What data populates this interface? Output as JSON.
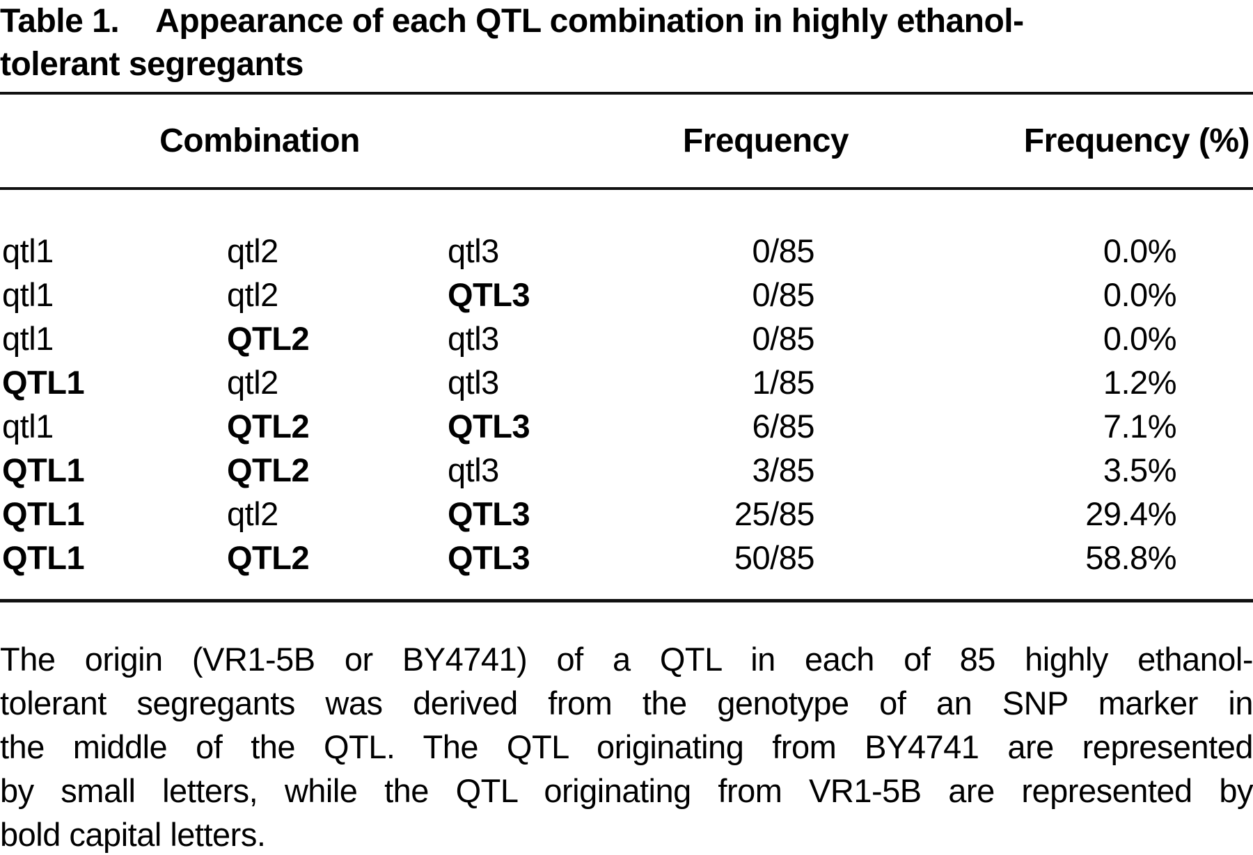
{
  "title": {
    "label": "Table 1.",
    "line1": "Appearance of each QTL combination in highly ethanol-",
    "line2": "tolerant segregants"
  },
  "table": {
    "headers": [
      {
        "text": "Combination"
      },
      {
        "text": "Frequency"
      },
      {
        "text": "Frequency (%)"
      }
    ],
    "rows": [
      {
        "combination": [
          {
            "text": "qtl1",
            "bold": false
          },
          {
            "text": "qtl2",
            "bold": false
          },
          {
            "text": "qtl3",
            "bold": false
          }
        ],
        "frequency": "0/85",
        "percent": "0.0%"
      },
      {
        "combination": [
          {
            "text": "qtl1",
            "bold": false
          },
          {
            "text": "qtl2",
            "bold": false
          },
          {
            "text": "QTL3",
            "bold": true
          }
        ],
        "frequency": "0/85",
        "percent": "0.0%"
      },
      {
        "combination": [
          {
            "text": "qtl1",
            "bold": false
          },
          {
            "text": "QTL2",
            "bold": true
          },
          {
            "text": "qtl3",
            "bold": false
          }
        ],
        "frequency": "0/85",
        "percent": "0.0%"
      },
      {
        "combination": [
          {
            "text": "QTL1",
            "bold": true
          },
          {
            "text": "qtl2",
            "bold": false
          },
          {
            "text": "qtl3",
            "bold": false
          }
        ],
        "frequency": "1/85",
        "percent": "1.2%"
      },
      {
        "combination": [
          {
            "text": "qtl1",
            "bold": false
          },
          {
            "text": "QTL2",
            "bold": true
          },
          {
            "text": "QTL3",
            "bold": true
          }
        ],
        "frequency": "6/85",
        "percent": "7.1%"
      },
      {
        "combination": [
          {
            "text": "QTL1",
            "bold": true
          },
          {
            "text": "QTL2",
            "bold": true
          },
          {
            "text": "qtl3",
            "bold": false
          }
        ],
        "frequency": "3/85",
        "percent": "3.5%"
      },
      {
        "combination": [
          {
            "text": "QTL1",
            "bold": true
          },
          {
            "text": "qtl2",
            "bold": false
          },
          {
            "text": "QTL3",
            "bold": true
          }
        ],
        "frequency": "25/85",
        "percent": "29.4%"
      },
      {
        "combination": [
          {
            "text": "QTL1",
            "bold": true
          },
          {
            "text": "QTL2",
            "bold": true
          },
          {
            "text": "QTL3",
            "bold": true
          }
        ],
        "frequency": "50/85",
        "percent": "58.8%"
      }
    ]
  },
  "footnote": {
    "lines": [
      {
        "text": "The origin (VR1-5B or BY4741) of a QTL in each of 85 highly ethanol-",
        "justify": true
      },
      {
        "text": "tolerant segregants was derived from the genotype of an SNP marker in",
        "justify": true
      },
      {
        "text": "the middle of the QTL. The QTL originating from BY4741 are represented",
        "justify": true
      },
      {
        "text": "by small letters, while the QTL originating from VR1-5B are represented by",
        "justify": true
      },
      {
        "text": "bold capital letters.",
        "justify": false
      }
    ]
  },
  "colors": {
    "text": "#000000",
    "background": "#ffffff",
    "rule": "#111111"
  }
}
